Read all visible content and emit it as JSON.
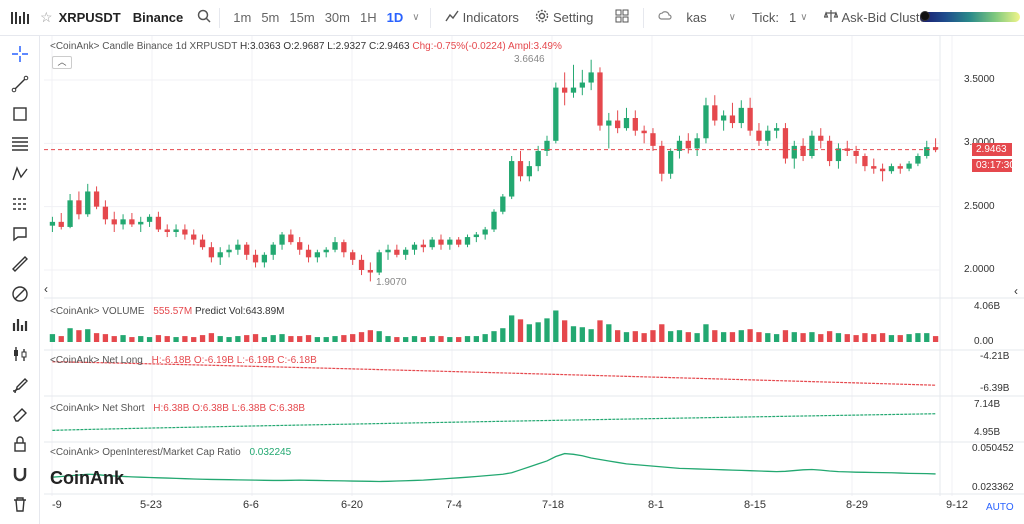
{
  "toolbar": {
    "symbol": "XRPUSDT",
    "exchange": "Binance",
    "intervals": [
      "1m",
      "5m",
      "15m",
      "30m",
      "1H",
      "1D"
    ],
    "active_interval": "1D",
    "indicators_label": "Indicators",
    "setting_label": "Setting",
    "kas_label": "kas",
    "tick_label": "Tick:",
    "tick_value": "1",
    "askbid_label": "Ask-Bid Cluster"
  },
  "candle_legend": {
    "label": "<CoinAnk> Candle  Binance 1d XRPUSDT",
    "h": "H:3.0363",
    "o": "O:2.9687",
    "l": "L:2.9327",
    "c": "C:2.9463",
    "chg": "Chg:-0.75%(-0.0224)",
    "ampl": "Ampl:3.49%"
  },
  "price_axis": [
    "3.5000",
    "3.0000",
    "2.5000",
    "2.0000"
  ],
  "price_tag": "2.9463",
  "countdown": "03:17:30",
  "high_marker": "3.6646",
  "low_marker": "1.9070",
  "volume_legend": {
    "label": "<CoinAnk> VOLUME",
    "value": "555.57M",
    "predict": "Predict Vol:643.89M"
  },
  "volume_axis": [
    "4.06B",
    "0.00"
  ],
  "netlong_legend": {
    "label": "<CoinAnk> Net Long",
    "h": "H:-6.18B",
    "o": "O:-6.19B",
    "l": "L:-6.19B",
    "c": "C:-6.18B"
  },
  "netlong_axis": [
    "-4.21B",
    "-6.39B"
  ],
  "netshort_legend": {
    "label": "<CoinAnk> Net Short",
    "h": "H:6.38B",
    "o": "O:6.38B",
    "l": "L:6.38B",
    "c": "C:6.38B"
  },
  "netshort_axis": [
    "7.14B",
    "4.95B"
  ],
  "oi_legend": {
    "label": "<CoinAnk> OpenInterest/Market Cap Ratio",
    "value": "0.032245"
  },
  "oi_axis": [
    "0.050452",
    "0.023362"
  ],
  "x_labels": [
    "-9",
    "5-23",
    "6-6",
    "6-20",
    "7-4",
    "7-18",
    "8-1",
    "8-15",
    "8-29",
    "9-12"
  ],
  "auto_label": "AUTO",
  "watermark": "CoinAnk",
  "colors": {
    "up": "#23a871",
    "down": "#e5484d",
    "accent": "#2962ff"
  },
  "candles": [
    [
      2.35,
      2.42,
      2.3,
      2.38
    ],
    [
      2.38,
      2.45,
      2.32,
      2.34
    ],
    [
      2.34,
      2.6,
      2.33,
      2.55
    ],
    [
      2.55,
      2.62,
      2.4,
      2.44
    ],
    [
      2.44,
      2.68,
      2.42,
      2.62
    ],
    [
      2.62,
      2.66,
      2.48,
      2.5
    ],
    [
      2.5,
      2.55,
      2.36,
      2.4
    ],
    [
      2.4,
      2.46,
      2.3,
      2.36
    ],
    [
      2.36,
      2.44,
      2.32,
      2.4
    ],
    [
      2.4,
      2.45,
      2.34,
      2.36
    ],
    [
      2.36,
      2.42,
      2.3,
      2.38
    ],
    [
      2.38,
      2.44,
      2.34,
      2.42
    ],
    [
      2.42,
      2.46,
      2.3,
      2.32
    ],
    [
      2.32,
      2.36,
      2.26,
      2.3
    ],
    [
      2.3,
      2.36,
      2.26,
      2.32
    ],
    [
      2.32,
      2.36,
      2.24,
      2.28
    ],
    [
      2.28,
      2.32,
      2.2,
      2.24
    ],
    [
      2.24,
      2.28,
      2.16,
      2.18
    ],
    [
      2.18,
      2.22,
      2.06,
      2.1
    ],
    [
      2.1,
      2.18,
      2.04,
      2.14
    ],
    [
      2.14,
      2.2,
      2.1,
      2.16
    ],
    [
      2.16,
      2.24,
      2.12,
      2.2
    ],
    [
      2.2,
      2.22,
      2.08,
      2.12
    ],
    [
      2.12,
      2.16,
      2.02,
      2.06
    ],
    [
      2.06,
      2.14,
      2.02,
      2.12
    ],
    [
      2.12,
      2.22,
      2.08,
      2.2
    ],
    [
      2.2,
      2.3,
      2.16,
      2.28
    ],
    [
      2.28,
      2.32,
      2.2,
      2.22
    ],
    [
      2.22,
      2.26,
      2.12,
      2.16
    ],
    [
      2.16,
      2.2,
      2.06,
      2.1
    ],
    [
      2.1,
      2.16,
      2.06,
      2.14
    ],
    [
      2.14,
      2.18,
      2.1,
      2.16
    ],
    [
      2.16,
      2.26,
      2.14,
      2.22
    ],
    [
      2.22,
      2.24,
      2.1,
      2.14
    ],
    [
      2.14,
      2.16,
      2.04,
      2.08
    ],
    [
      2.08,
      2.12,
      1.96,
      2.0
    ],
    [
      2.0,
      2.06,
      1.91,
      1.98
    ],
    [
      1.98,
      2.16,
      1.96,
      2.14
    ],
    [
      2.14,
      2.2,
      2.08,
      2.16
    ],
    [
      2.16,
      2.2,
      2.1,
      2.12
    ],
    [
      2.12,
      2.18,
      2.08,
      2.16
    ],
    [
      2.16,
      2.22,
      2.12,
      2.2
    ],
    [
      2.2,
      2.24,
      2.14,
      2.18
    ],
    [
      2.18,
      2.26,
      2.16,
      2.24
    ],
    [
      2.24,
      2.28,
      2.16,
      2.2
    ],
    [
      2.2,
      2.26,
      2.16,
      2.24
    ],
    [
      2.24,
      2.26,
      2.18,
      2.2
    ],
    [
      2.2,
      2.28,
      2.18,
      2.26
    ],
    [
      2.26,
      2.3,
      2.22,
      2.28
    ],
    [
      2.28,
      2.34,
      2.24,
      2.32
    ],
    [
      2.32,
      2.48,
      2.3,
      2.46
    ],
    [
      2.46,
      2.6,
      2.44,
      2.58
    ],
    [
      2.58,
      2.9,
      2.56,
      2.86
    ],
    [
      2.86,
      2.94,
      2.7,
      2.74
    ],
    [
      2.74,
      2.86,
      2.7,
      2.82
    ],
    [
      2.82,
      2.98,
      2.78,
      2.94
    ],
    [
      2.94,
      3.06,
      2.9,
      3.02
    ],
    [
      3.02,
      3.48,
      3.0,
      3.44
    ],
    [
      3.44,
      3.56,
      3.3,
      3.4
    ],
    [
      3.4,
      3.62,
      3.36,
      3.44
    ],
    [
      3.44,
      3.58,
      3.38,
      3.48
    ],
    [
      3.48,
      3.66,
      3.42,
      3.56
    ],
    [
      3.56,
      3.6,
      3.1,
      3.14
    ],
    [
      3.14,
      3.24,
      2.96,
      3.18
    ],
    [
      3.18,
      3.26,
      3.08,
      3.12
    ],
    [
      3.12,
      3.28,
      3.1,
      3.2
    ],
    [
      3.2,
      3.26,
      3.06,
      3.1
    ],
    [
      3.1,
      3.14,
      3.0,
      3.08
    ],
    [
      3.08,
      3.12,
      2.94,
      2.98
    ],
    [
      2.98,
      3.02,
      2.7,
      2.76
    ],
    [
      2.76,
      2.96,
      2.72,
      2.94
    ],
    [
      2.94,
      3.06,
      2.88,
      3.02
    ],
    [
      3.02,
      3.08,
      2.92,
      2.96
    ],
    [
      2.96,
      3.08,
      2.9,
      3.04
    ],
    [
      3.04,
      3.36,
      3.0,
      3.3
    ],
    [
      3.3,
      3.38,
      3.14,
      3.18
    ],
    [
      3.18,
      3.26,
      3.1,
      3.22
    ],
    [
      3.22,
      3.32,
      3.12,
      3.16
    ],
    [
      3.16,
      3.34,
      3.12,
      3.28
    ],
    [
      3.28,
      3.36,
      3.06,
      3.1
    ],
    [
      3.1,
      3.16,
      2.98,
      3.02
    ],
    [
      3.02,
      3.14,
      2.98,
      3.1
    ],
    [
      3.1,
      3.16,
      3.04,
      3.12
    ],
    [
      3.12,
      3.16,
      2.84,
      2.88
    ],
    [
      2.88,
      3.02,
      2.8,
      2.98
    ],
    [
      2.98,
      3.04,
      2.86,
      2.9
    ],
    [
      2.9,
      3.1,
      2.88,
      3.06
    ],
    [
      3.06,
      3.12,
      2.96,
      3.02
    ],
    [
      3.02,
      3.06,
      2.82,
      2.86
    ],
    [
      2.86,
      3.0,
      2.8,
      2.96
    ],
    [
      2.96,
      3.02,
      2.9,
      2.94
    ],
    [
      2.94,
      2.98,
      2.84,
      2.9
    ],
    [
      2.9,
      2.92,
      2.78,
      2.82
    ],
    [
      2.82,
      2.88,
      2.76,
      2.8
    ],
    [
      2.8,
      2.84,
      2.7,
      2.78
    ],
    [
      2.78,
      2.84,
      2.76,
      2.82
    ],
    [
      2.82,
      2.84,
      2.76,
      2.8
    ],
    [
      2.8,
      2.86,
      2.78,
      2.84
    ],
    [
      2.84,
      2.92,
      2.82,
      2.9
    ],
    [
      2.9,
      3.02,
      2.88,
      2.97
    ],
    [
      2.97,
      3.04,
      2.93,
      2.95
    ]
  ],
  "volumes": [
    0.8,
    0.6,
    1.4,
    1.2,
    1.3,
    0.9,
    0.8,
    0.6,
    0.7,
    0.5,
    0.6,
    0.5,
    0.7,
    0.6,
    0.5,
    0.6,
    0.5,
    0.7,
    0.9,
    0.6,
    0.5,
    0.6,
    0.7,
    0.8,
    0.5,
    0.7,
    0.8,
    0.6,
    0.6,
    0.7,
    0.5,
    0.5,
    0.6,
    0.7,
    0.8,
    1.0,
    1.2,
    1.1,
    0.6,
    0.5,
    0.5,
    0.6,
    0.5,
    0.6,
    0.6,
    0.5,
    0.5,
    0.6,
    0.6,
    0.8,
    1.1,
    1.4,
    2.7,
    2.3,
    1.8,
    2.0,
    2.4,
    3.2,
    2.2,
    1.6,
    1.5,
    1.3,
    2.2,
    1.8,
    1.2,
    1.0,
    1.1,
    0.9,
    1.2,
    1.8,
    1.1,
    1.2,
    1.0,
    0.9,
    1.8,
    1.2,
    1.0,
    1.0,
    1.2,
    1.3,
    1.0,
    0.9,
    0.8,
    1.2,
    1.0,
    0.9,
    1.0,
    0.8,
    1.1,
    0.9,
    0.8,
    0.7,
    0.9,
    0.8,
    0.9,
    0.7,
    0.7,
    0.8,
    0.9,
    0.9,
    0.6
  ],
  "oi_ratio": [
    0.03,
    0.0305,
    0.031,
    0.0315,
    0.032,
    0.0318,
    0.0312,
    0.0308,
    0.0305,
    0.0302,
    0.03,
    0.0298,
    0.0296,
    0.0294,
    0.0292,
    0.029,
    0.0288,
    0.0286,
    0.0285,
    0.0284,
    0.0283,
    0.0282,
    0.0281,
    0.028,
    0.0279,
    0.0278,
    0.0278,
    0.0279,
    0.028,
    0.0279,
    0.0278,
    0.0277,
    0.0276,
    0.0275,
    0.0274,
    0.0273,
    0.0272,
    0.0271,
    0.0272,
    0.0274,
    0.0276,
    0.0278,
    0.028,
    0.0284,
    0.0288,
    0.0292,
    0.0296,
    0.03,
    0.0305,
    0.031,
    0.0315,
    0.032,
    0.033,
    0.035,
    0.037,
    0.039,
    0.041,
    0.044,
    0.046,
    0.0455,
    0.0445,
    0.043,
    0.042,
    0.041,
    0.04,
    0.039,
    0.0385,
    0.038,
    0.0375,
    0.037,
    0.0365,
    0.036,
    0.0358,
    0.0356,
    0.0354,
    0.0352,
    0.035,
    0.0348,
    0.0346,
    0.0344,
    0.0342,
    0.034,
    0.0338,
    0.034,
    0.0345,
    0.035,
    0.0352,
    0.0348,
    0.0342,
    0.0338,
    0.0336,
    0.0334,
    0.0333,
    0.0332,
    0.0331,
    0.033,
    0.0328,
    0.0326,
    0.0325,
    0.0324,
    0.0322
  ]
}
